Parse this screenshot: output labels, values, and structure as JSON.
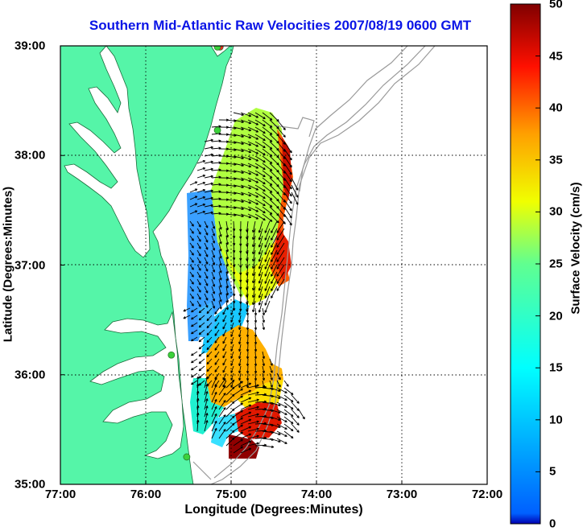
{
  "title": "Southern Mid-Atlantic Raw Velocities 2007/08/19 0600 GMT",
  "map": {
    "xlabel": "Longitude (Degrees:Minutes)",
    "ylabel": "Latitude (Degrees:Minutes)",
    "x_ticks": [
      "77:00",
      "76:00",
      "75:00",
      "74:00",
      "73:00",
      "72:00"
    ],
    "y_ticks": [
      "39:00",
      "38:00",
      "37:00",
      "36:00",
      "35:00"
    ],
    "lon_range": [
      -77,
      -72
    ],
    "lat_range": [
      35,
      39
    ],
    "grid": true,
    "land_color": "#55f5a8",
    "water_color": "#ffffff",
    "bathymetry_color": "#9a9a9a",
    "vector_color": "#000000"
  },
  "colorbar": {
    "label": "Surface Velocity (cm/s)",
    "ticks": [
      "0",
      "5",
      "10",
      "15",
      "20",
      "25",
      "30",
      "35",
      "40",
      "45",
      "50"
    ],
    "range": [
      0,
      50
    ],
    "colormap": "jet"
  },
  "stations": [
    {
      "lon": -75.13,
      "lat": 38.99,
      "color": "#ff2020"
    },
    {
      "lon": -75.16,
      "lat": 38.99,
      "color": "#3bd23b"
    },
    {
      "lon": -75.16,
      "lat": 38.23,
      "color": "#3bd23b"
    },
    {
      "lon": -75.7,
      "lat": 36.18,
      "color": "#3bd23b"
    },
    {
      "lon": -75.52,
      "lat": 35.25,
      "color": "#3bd23b"
    }
  ]
}
